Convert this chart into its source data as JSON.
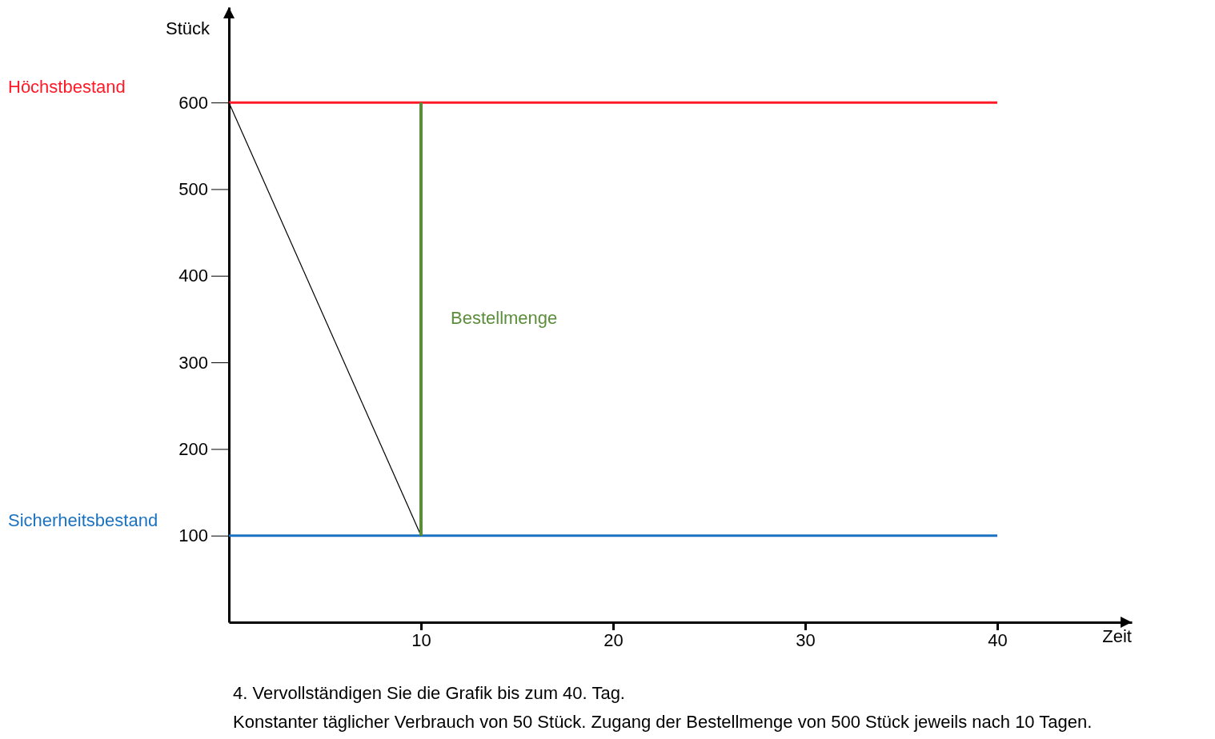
{
  "chart_data": {
    "type": "line",
    "xlabel": "Zeit",
    "ylabel": "Stück",
    "xlim": [
      0,
      47
    ],
    "ylim": [
      0,
      710
    ],
    "xticks": [
      10,
      20,
      30,
      40
    ],
    "yticks": [
      100,
      200,
      300,
      400,
      500,
      600
    ],
    "series": [
      {
        "name": "Höchstbestand",
        "color": "#fe1a27",
        "x": [
          0,
          40
        ],
        "values": [
          600,
          600
        ]
      },
      {
        "name": "Sicherheitsbestand",
        "color": "#1a72c0",
        "x": [
          0,
          40
        ],
        "values": [
          100,
          100
        ]
      },
      {
        "color": "#000000",
        "x": [
          0,
          10
        ],
        "values": [
          600,
          100
        ]
      },
      {
        "name": "Bestellmenge",
        "color": "#5b8e3b",
        "x": [
          10,
          10
        ],
        "values": [
          100,
          600
        ]
      }
    ],
    "annotations": [
      "4. Vervollständigen Sie die Grafik bis zum 40. Tag.",
      "Konstanter täglicher Verbrauch von 50 Stück. Zugang der Bestellmenge von 500 Stück jeweils nach 10 Tagen."
    ]
  }
}
